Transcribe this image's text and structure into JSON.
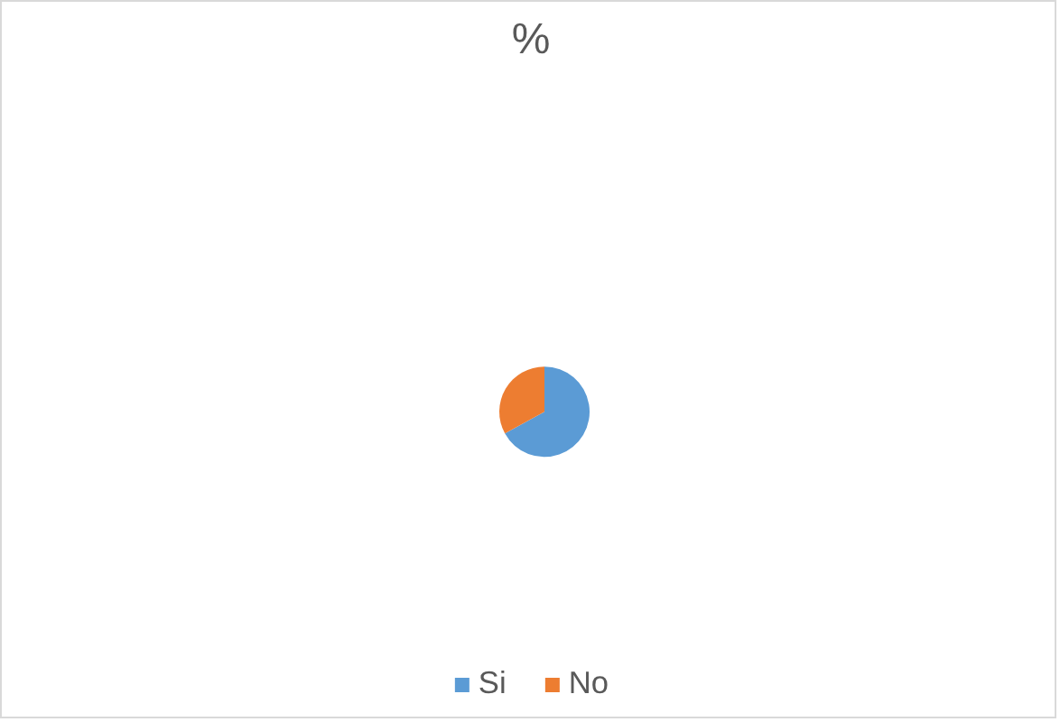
{
  "chart_data": {
    "type": "pie",
    "title": "%",
    "categories": [
      "Si",
      "No"
    ],
    "values": [
      67,
      33
    ],
    "colors": [
      "#5b9bd5",
      "#ed7d31"
    ],
    "legend": "bottom"
  }
}
